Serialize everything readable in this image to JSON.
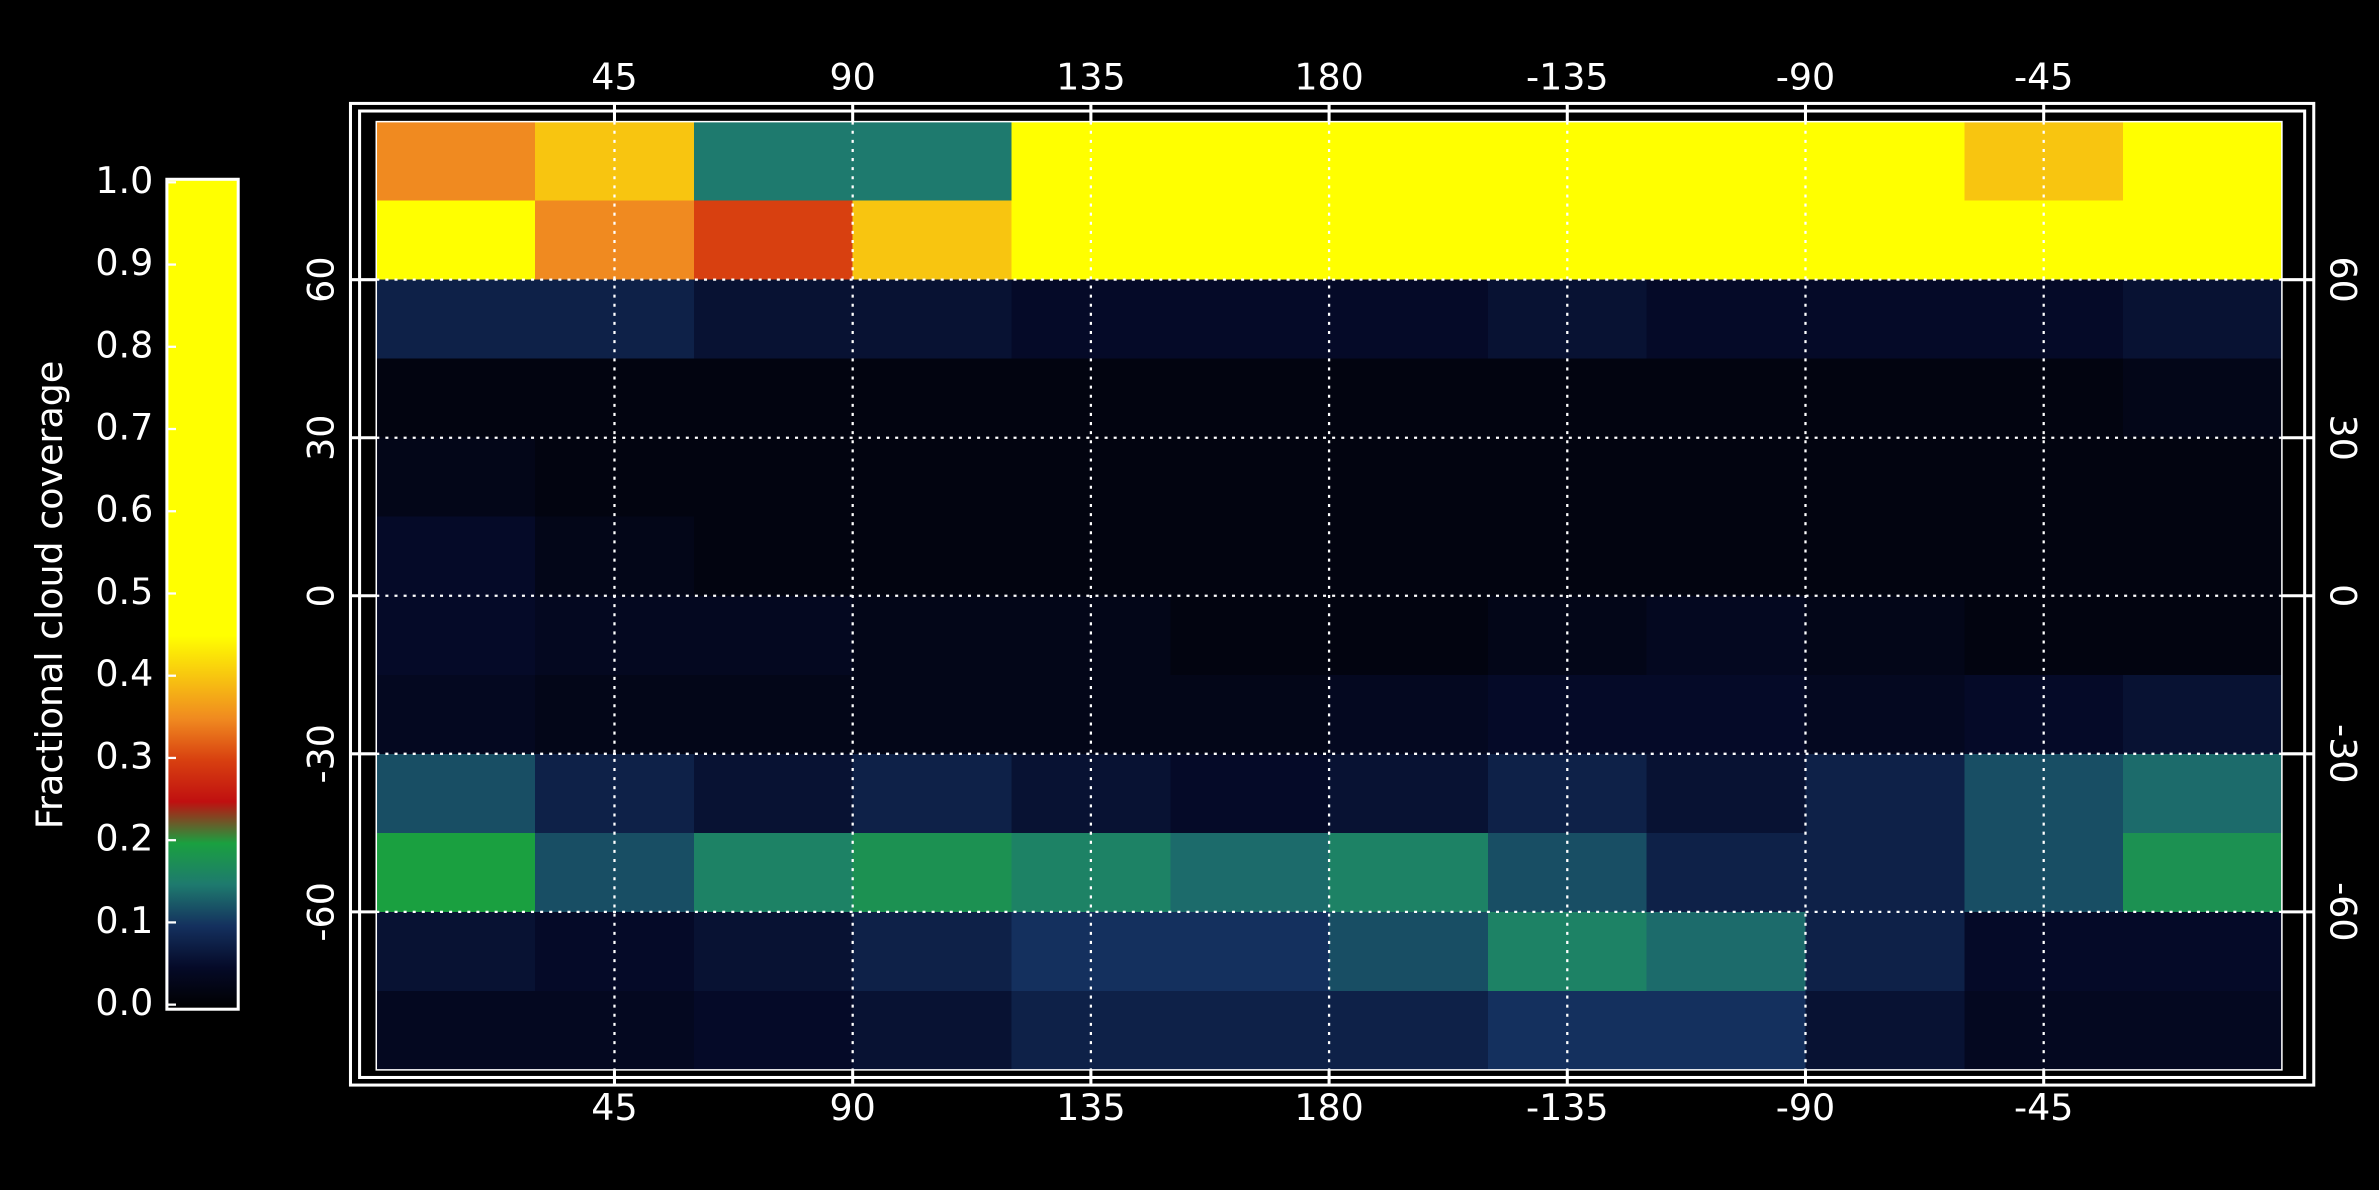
{
  "chart_data": {
    "type": "heatmap",
    "colorbar": {
      "label": "Fractional cloud coverage",
      "lim": [
        0,
        1
      ],
      "ticks": [
        {
          "value": 0,
          "label": "0.0"
        },
        0.1,
        0.2,
        0.3,
        0.4,
        0.5,
        0.6,
        0.7,
        0.8,
        0.9,
        {
          "value": 1,
          "label": "1.0"
        }
      ]
    },
    "colorscale": [
      [
        0,
        "#000000"
      ],
      [
        0.05,
        "#050a28"
      ],
      [
        0.1,
        "#14305e"
      ],
      [
        0.15,
        "#1e7a6e"
      ],
      [
        0.2,
        "#1aa040"
      ],
      [
        0.25,
        "#c01010"
      ],
      [
        0.3,
        "#d84010"
      ],
      [
        0.35,
        "#f08a20"
      ],
      [
        0.45,
        "#ffff00"
      ],
      [
        1,
        "#ffff00"
      ]
    ],
    "xlim": [
      0,
      360
    ],
    "ylim": [
      -90,
      90
    ],
    "xticks": [
      45,
      90,
      135,
      180,
      {
        "value": 225,
        "label": "-135"
      },
      {
        "value": 270,
        "label": "-90"
      },
      {
        "value": 315,
        "label": "-45"
      }
    ],
    "yticks": [
      -60,
      -30,
      0,
      30,
      60
    ],
    "grid": true,
    "x": [
      15,
      45,
      75,
      105,
      135,
      165,
      195,
      225,
      255,
      285,
      315,
      345
    ],
    "y": [
      82.5,
      67.5,
      52.5,
      37.5,
      22.5,
      7.5,
      -7.5,
      -22.5,
      -37.5,
      -52.5,
      -67.5,
      -82.5
    ],
    "z": [
      [
        0.35,
        0.4,
        0.15,
        0.15,
        0.6,
        0.95,
        0.95,
        0.95,
        0.6,
        0.7,
        0.4,
        0.5
      ],
      [
        0.45,
        0.35,
        0.3,
        0.4,
        0.9,
        1.0,
        1.0,
        0.95,
        0.9,
        0.95,
        0.8,
        0.9
      ],
      [
        0.08,
        0.08,
        0.06,
        0.06,
        0.05,
        0.05,
        0.05,
        0.06,
        0.05,
        0.05,
        0.05,
        0.06
      ],
      [
        0.02,
        0.02,
        0.02,
        0.02,
        0.02,
        0.02,
        0.02,
        0.02,
        0.02,
        0.02,
        0.02,
        0.03
      ],
      [
        0.03,
        0.02,
        0.02,
        0.02,
        0.02,
        0.02,
        0.02,
        0.02,
        0.02,
        0.02,
        0.02,
        0.02
      ],
      [
        0.05,
        0.03,
        0.02,
        0.02,
        0.02,
        0.02,
        0.02,
        0.02,
        0.02,
        0.02,
        0.02,
        0.02
      ],
      [
        0.05,
        0.04,
        0.04,
        0.03,
        0.03,
        0.02,
        0.02,
        0.03,
        0.04,
        0.03,
        0.02,
        0.02
      ],
      [
        0.04,
        0.03,
        0.03,
        0.03,
        0.03,
        0.03,
        0.04,
        0.05,
        0.05,
        0.04,
        0.05,
        0.06
      ],
      [
        0.12,
        0.08,
        0.06,
        0.08,
        0.06,
        0.05,
        0.06,
        0.08,
        0.06,
        0.08,
        0.12,
        0.14
      ],
      [
        0.2,
        0.12,
        0.16,
        0.18,
        0.16,
        0.14,
        0.16,
        0.12,
        0.08,
        0.08,
        0.12,
        0.18
      ],
      [
        0.06,
        0.05,
        0.06,
        0.08,
        0.1,
        0.1,
        0.12,
        0.16,
        0.14,
        0.08,
        0.05,
        0.05
      ],
      [
        0.04,
        0.04,
        0.05,
        0.06,
        0.08,
        0.08,
        0.08,
        0.1,
        0.1,
        0.06,
        0.04,
        0.04
      ]
    ]
  }
}
